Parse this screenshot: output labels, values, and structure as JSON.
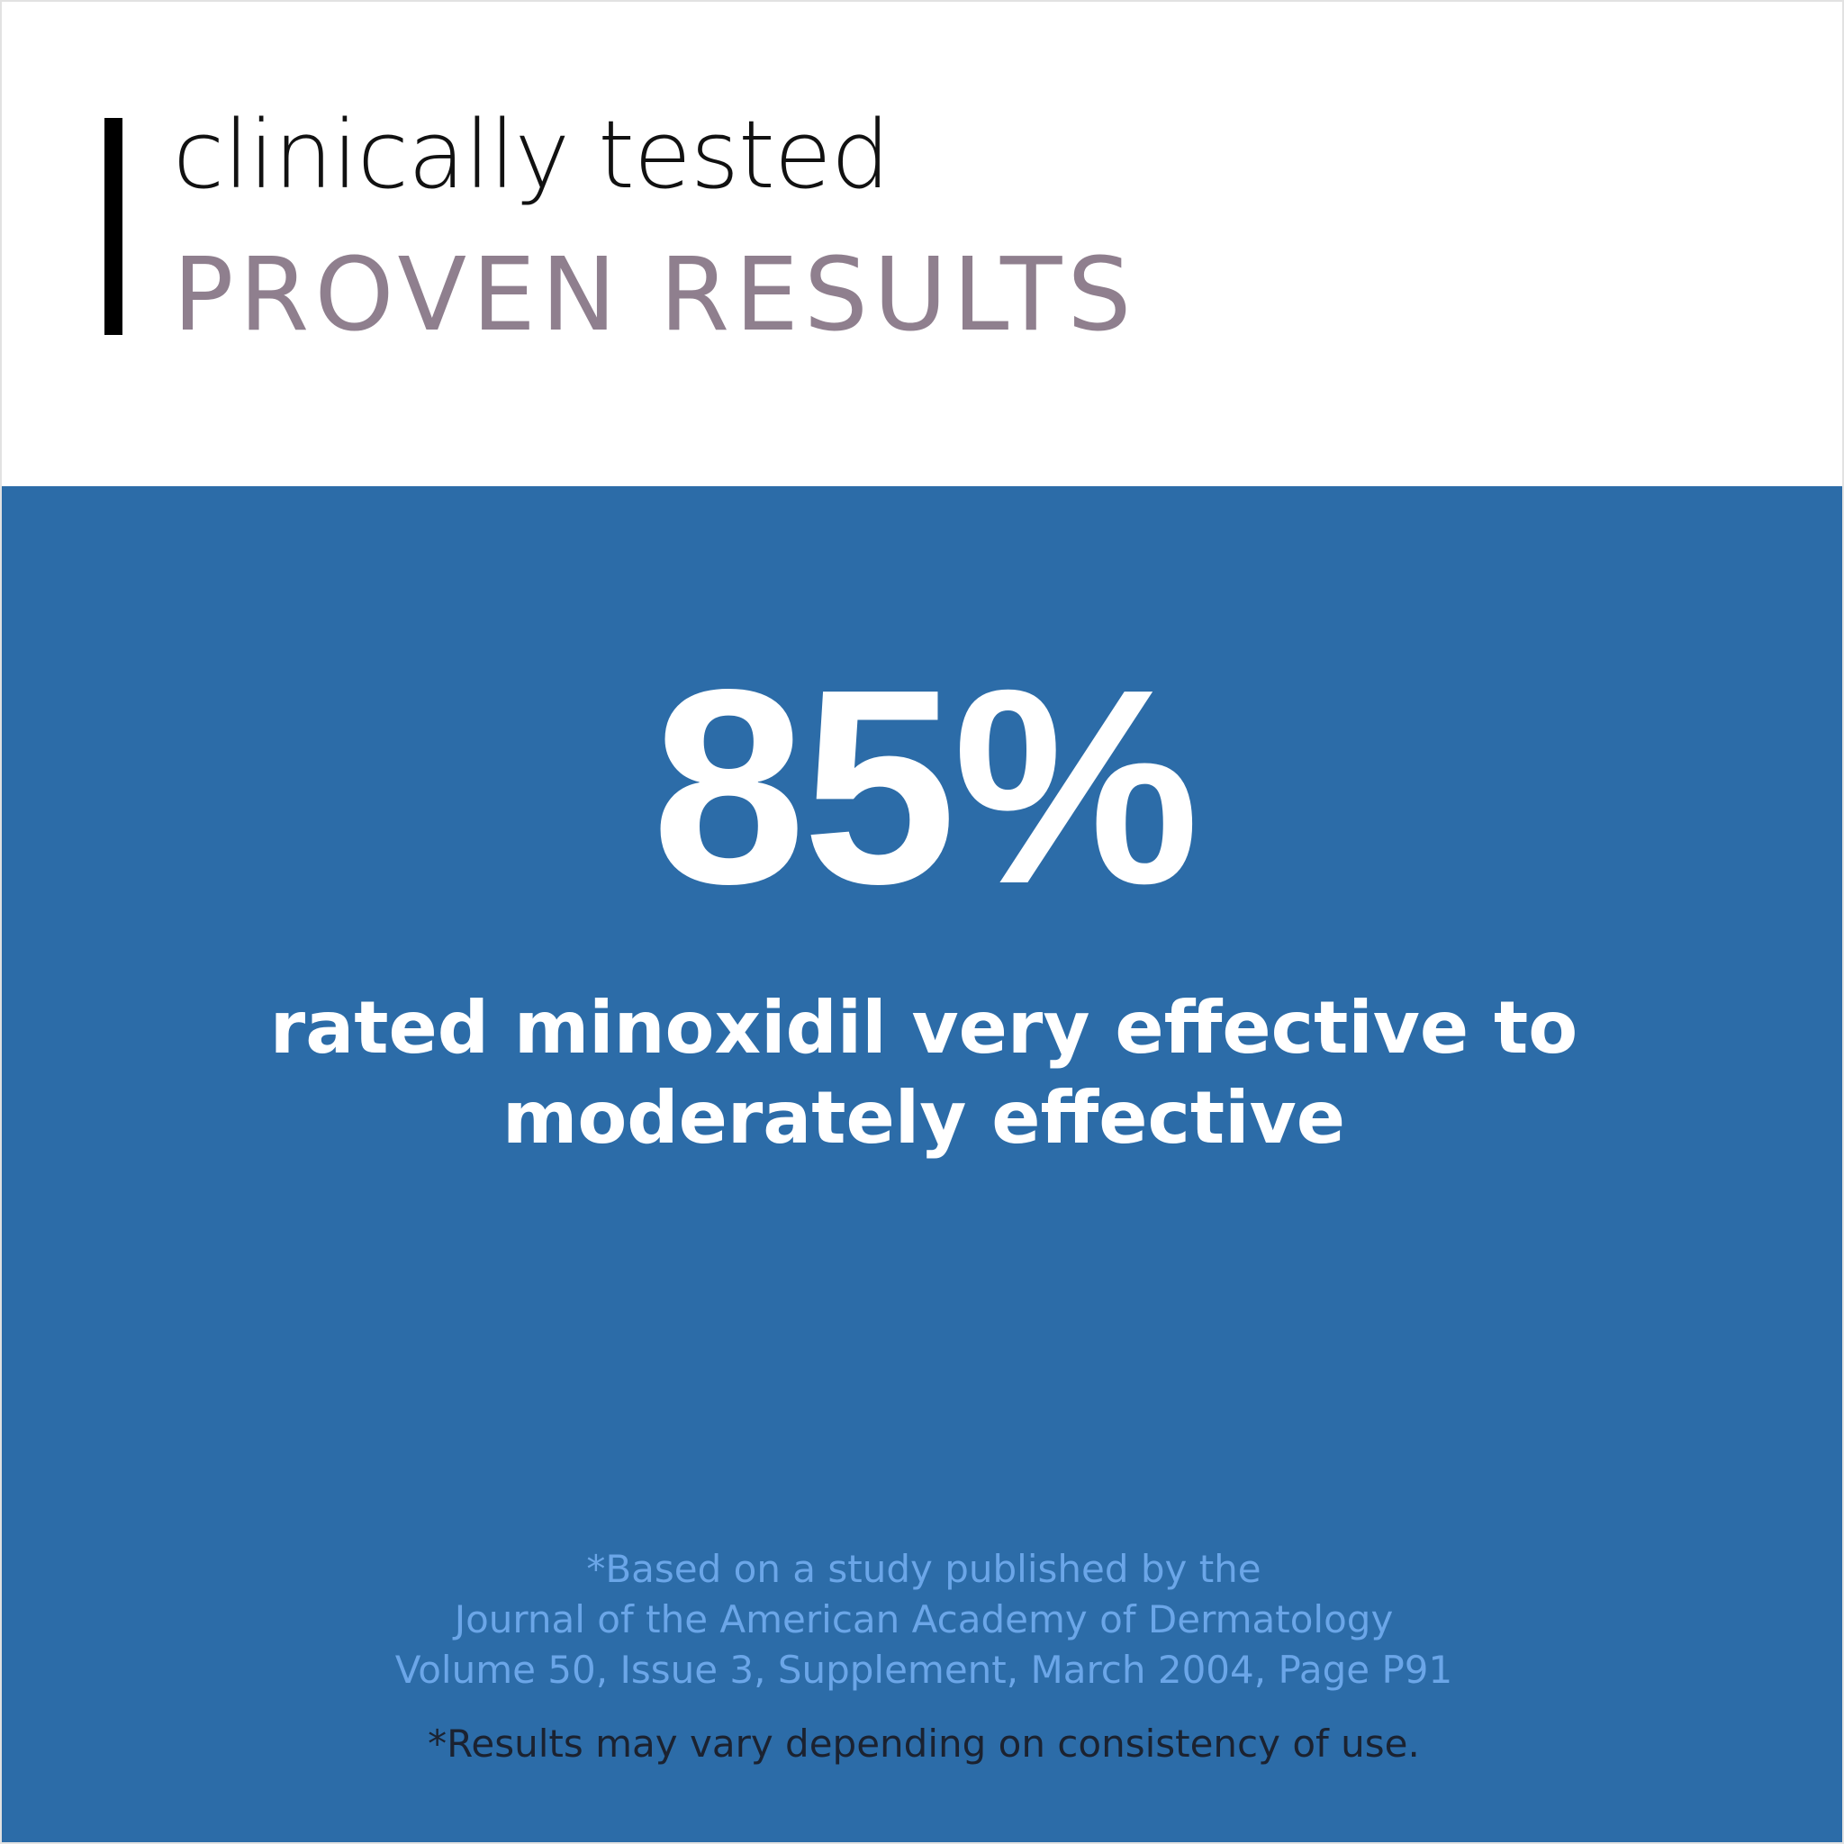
{
  "header": {
    "eyebrow": "clinically tested",
    "headline": "PROVEN RESULTS"
  },
  "stat": {
    "value": "85%",
    "caption_line1": "rated minoxidil very effective to",
    "caption_line2": "moderately effective"
  },
  "citation": {
    "line1": "*Based on a study published by the",
    "line2": "Journal of the American Academy of Dermatology",
    "line3": "Volume 50, Issue 3, Supplement, March 2004, Page P91"
  },
  "disclaimer": "*Results may vary depending on consistency of use.",
  "colors": {
    "accent_bar": "#000000",
    "headline": "#8f7f8e",
    "panel_background": "#2c6ca8",
    "stat_text": "#ffffff",
    "citation_text": "#6ba6e8",
    "disclaimer_text": "#1b2230"
  }
}
